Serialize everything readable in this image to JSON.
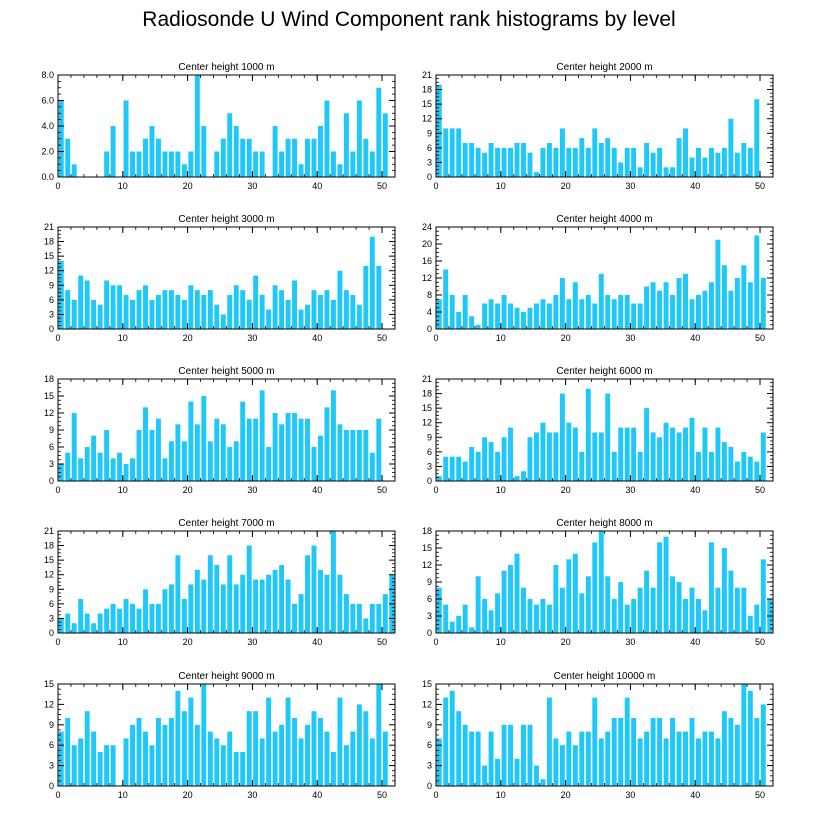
{
  "figure": {
    "title": "Radiosonde U Wind Component rank histograms by level",
    "bar_color": "#1ec8f8",
    "text_color": "#000000"
  },
  "chart_data": [
    {
      "type": "bar",
      "title": "Center height 1000 m",
      "xlim": [
        0,
        52
      ],
      "ylim": [
        0,
        8
      ],
      "yticks": [
        0,
        2,
        4,
        6,
        8
      ],
      "ytick_labels": [
        "0.0",
        "2.0",
        "4.0",
        "6.0",
        "8.0"
      ],
      "xticks": [
        0,
        10,
        20,
        30,
        40,
        50
      ],
      "values": [
        6,
        3,
        1,
        0,
        0,
        0,
        0,
        2,
        4,
        0,
        6,
        2,
        2,
        3,
        4,
        3,
        2,
        2,
        2,
        1,
        2,
        8,
        4,
        0,
        2,
        3,
        5,
        4,
        3,
        3,
        2,
        2,
        0,
        4,
        2,
        3,
        3,
        1,
        3,
        3,
        4,
        6,
        2,
        1,
        5,
        2,
        6,
        3,
        2,
        7,
        5
      ]
    },
    {
      "type": "bar",
      "title": "Center height 2000 m",
      "xlim": [
        0,
        52
      ],
      "ylim": [
        0,
        21
      ],
      "yticks": [
        0,
        3,
        6,
        9,
        12,
        15,
        18,
        21
      ],
      "ytick_labels": [
        "0",
        "3",
        "6",
        "9",
        "12",
        "15",
        "18",
        "21"
      ],
      "xticks": [
        0,
        10,
        20,
        30,
        40,
        50
      ],
      "values": [
        19,
        10,
        10,
        10,
        7,
        7,
        6,
        5,
        7,
        6,
        6,
        6,
        7,
        7,
        5,
        1,
        6,
        7,
        6,
        10,
        6,
        6,
        8,
        6,
        10,
        7,
        8,
        6,
        3,
        6,
        6,
        2,
        7,
        5,
        6,
        2,
        2,
        8,
        10,
        4,
        6,
        4,
        6,
        5,
        6,
        12,
        5,
        7,
        6,
        16,
        0
      ]
    },
    {
      "type": "bar",
      "title": "Center height 3000 m",
      "xlim": [
        0,
        52
      ],
      "ylim": [
        0,
        21
      ],
      "yticks": [
        0,
        3,
        6,
        9,
        12,
        15,
        18,
        21
      ],
      "ytick_labels": [
        "0",
        "3",
        "6",
        "9",
        "12",
        "15",
        "18",
        "21"
      ],
      "xticks": [
        0,
        10,
        20,
        30,
        40,
        50
      ],
      "values": [
        14,
        8,
        6,
        11,
        10,
        6,
        5,
        10,
        9,
        9,
        7,
        6,
        8,
        9,
        6,
        7,
        8,
        8,
        7,
        6,
        9,
        8,
        7,
        8,
        5,
        3,
        7,
        9,
        8,
        6,
        11,
        7,
        4,
        9,
        8,
        6,
        10,
        4,
        5,
        8,
        7,
        8,
        6,
        12,
        8,
        7,
        5,
        13,
        19,
        13,
        0
      ]
    },
    {
      "type": "bar",
      "title": "Center height 4000 m",
      "xlim": [
        0,
        52
      ],
      "ylim": [
        0,
        24
      ],
      "yticks": [
        0,
        4,
        8,
        12,
        16,
        20,
        24
      ],
      "ytick_labels": [
        "0",
        "4",
        "8",
        "12",
        "16",
        "20",
        "24"
      ],
      "xticks": [
        0,
        10,
        20,
        30,
        40,
        50
      ],
      "values": [
        7,
        14,
        8,
        4,
        8,
        3,
        1,
        6,
        7,
        6,
        8,
        6,
        5,
        4,
        5,
        6,
        7,
        6,
        8,
        12,
        7,
        11,
        7,
        8,
        6,
        13,
        8,
        7,
        8,
        8,
        6,
        6,
        10,
        11,
        9,
        11,
        8,
        12,
        13,
        7,
        8,
        9,
        11,
        21,
        15,
        9,
        12,
        15,
        11,
        22,
        12
      ]
    },
    {
      "type": "bar",
      "title": "Center height 5000 m",
      "xlim": [
        0,
        52
      ],
      "ylim": [
        0,
        18
      ],
      "yticks": [
        0,
        3,
        6,
        9,
        12,
        15,
        18
      ],
      "ytick_labels": [
        "0",
        "3",
        "6",
        "9",
        "12",
        "15",
        "18"
      ],
      "xticks": [
        0,
        10,
        20,
        30,
        40,
        50
      ],
      "values": [
        3,
        5,
        12,
        4,
        6,
        8,
        5,
        9,
        4,
        5,
        3,
        4,
        9,
        13,
        9,
        11,
        4,
        7,
        10,
        7,
        14,
        10,
        15,
        7,
        11,
        10,
        6,
        7,
        14,
        11,
        11,
        16,
        6,
        12,
        10,
        12,
        12,
        11,
        11,
        6,
        8,
        13,
        16,
        10,
        9,
        9,
        9,
        9,
        5,
        11,
        0
      ]
    },
    {
      "type": "bar",
      "title": "Center height 6000 m",
      "xlim": [
        0,
        52
      ],
      "ylim": [
        0,
        21
      ],
      "yticks": [
        0,
        3,
        6,
        9,
        12,
        15,
        18,
        21
      ],
      "ytick_labels": [
        "0",
        "3",
        "6",
        "9",
        "12",
        "15",
        "18",
        "21"
      ],
      "xticks": [
        0,
        10,
        20,
        30,
        40,
        50
      ],
      "values": [
        1,
        5,
        5,
        5,
        4,
        7,
        6,
        9,
        8,
        6,
        9,
        11,
        1,
        2,
        9,
        10,
        12,
        10,
        10,
        18,
        12,
        11,
        6,
        19,
        10,
        10,
        18,
        6,
        11,
        11,
        11,
        6,
        15,
        10,
        9,
        12,
        11,
        10,
        11,
        13,
        6,
        11,
        6,
        11,
        8,
        7,
        4,
        6,
        5,
        4,
        10
      ]
    },
    {
      "type": "bar",
      "title": "Center height 7000 m",
      "xlim": [
        0,
        52
      ],
      "ylim": [
        0,
        21
      ],
      "yticks": [
        0,
        3,
        6,
        9,
        12,
        15,
        18,
        21
      ],
      "ytick_labels": [
        "0",
        "3",
        "6",
        "9",
        "12",
        "15",
        "18",
        "21"
      ],
      "xticks": [
        0,
        10,
        20,
        30,
        40,
        50
      ],
      "values": [
        3,
        4,
        2,
        7,
        4,
        2,
        4,
        5,
        6,
        5,
        7,
        6,
        5,
        9,
        6,
        6,
        9,
        10,
        16,
        7,
        10,
        13,
        11,
        16,
        14,
        10,
        16,
        10,
        12,
        18,
        11,
        11,
        12,
        13,
        14,
        11,
        6,
        8,
        16,
        18,
        13,
        12,
        21,
        12,
        8,
        6,
        6,
        3,
        6,
        6,
        8,
        12
      ]
    },
    {
      "type": "bar",
      "title": "Center height 8000 m",
      "xlim": [
        0,
        52
      ],
      "ylim": [
        0,
        18
      ],
      "yticks": [
        0,
        3,
        6,
        9,
        12,
        15,
        18
      ],
      "ytick_labels": [
        "0",
        "3",
        "6",
        "9",
        "12",
        "15",
        "18"
      ],
      "xticks": [
        0,
        10,
        20,
        30,
        40,
        50
      ],
      "values": [
        8,
        5,
        2,
        3,
        5,
        1,
        10,
        6,
        4,
        7,
        11,
        12,
        14,
        8,
        6,
        5,
        6,
        5,
        12,
        8,
        13,
        14,
        7,
        10,
        16,
        18,
        10,
        6,
        9,
        5,
        6,
        8,
        11,
        8,
        16,
        17,
        10,
        9,
        6,
        8,
        6,
        4,
        16,
        8,
        15,
        11,
        8,
        8,
        3,
        5,
        13,
        6
      ]
    },
    {
      "type": "bar",
      "title": "Center height 9000 m",
      "xlim": [
        0,
        52
      ],
      "ylim": [
        0,
        15
      ],
      "yticks": [
        0,
        3,
        6,
        9,
        12,
        15
      ],
      "ytick_labels": [
        "0",
        "3",
        "6",
        "9",
        "12",
        "15"
      ],
      "xticks": [
        0,
        10,
        20,
        30,
        40,
        50
      ],
      "values": [
        8,
        10,
        6,
        7,
        11,
        8,
        5,
        6,
        6,
        0,
        7,
        9,
        10,
        8,
        6,
        10,
        9,
        10,
        14,
        11,
        13,
        9,
        15,
        8,
        7,
        6,
        8,
        5,
        5,
        11,
        11,
        7,
        13,
        8,
        9,
        13,
        10,
        7,
        9,
        11,
        10,
        8,
        5,
        13,
        6,
        8,
        12,
        11,
        7,
        15,
        8
      ]
    },
    {
      "type": "bar",
      "title": "Center height 10000 m",
      "xlim": [
        0,
        52
      ],
      "ylim": [
        0,
        15
      ],
      "yticks": [
        0,
        3,
        6,
        9,
        12,
        15
      ],
      "ytick_labels": [
        "0",
        "3",
        "6",
        "9",
        "12",
        "15"
      ],
      "xticks": [
        0,
        10,
        20,
        30,
        40,
        50
      ],
      "values": [
        7,
        13,
        14,
        11,
        9,
        8,
        8,
        3,
        8,
        4,
        9,
        9,
        4,
        9,
        9,
        3,
        1,
        13,
        7,
        6,
        8,
        6,
        8,
        8,
        13,
        7,
        8,
        10,
        10,
        13,
        10,
        7,
        8,
        10,
        10,
        7,
        10,
        8,
        8,
        10,
        7,
        8,
        8,
        7,
        11,
        10,
        9,
        15,
        14,
        10,
        12
      ]
    }
  ]
}
